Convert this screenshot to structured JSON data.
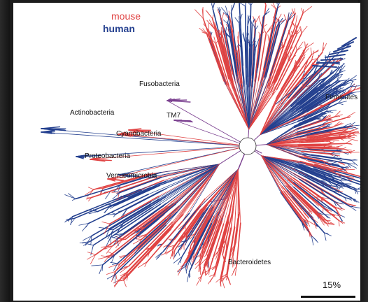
{
  "legend": {
    "mouse": {
      "label": "mouse",
      "color": "#e04343"
    },
    "human": {
      "label": "human",
      "color": "#24408f"
    }
  },
  "clades": {
    "fusobacteria": "Fusobacteria",
    "firmicutes": "Firmicutes",
    "actinobacteria": "Actinobacteria",
    "tm7": "TM7",
    "cyanobacteria": "Cyanobacteria",
    "proteobacteria": "Proteobacteria",
    "verrucomicrobia": "Verrucomicrobia",
    "bacteroidetes": "Bacteroidetes"
  },
  "scale": {
    "label": "15%"
  }
}
